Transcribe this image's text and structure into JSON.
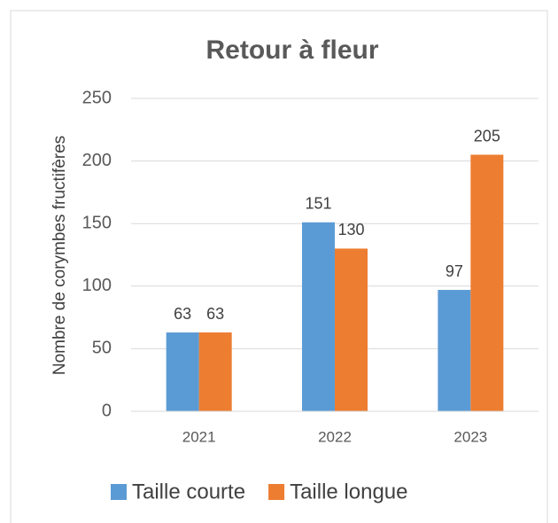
{
  "chart_data": {
    "type": "bar",
    "title": "Retour à fleur",
    "y_label": "Nombre de corymbes fructifères",
    "categories": [
      "2021",
      "2022",
      "2023"
    ],
    "series": [
      {
        "name": "Taille courte",
        "color": "#5b9bd5",
        "values": [
          63,
          151,
          97
        ]
      },
      {
        "name": "Taille longue",
        "color": "#ed7d31",
        "values": [
          63,
          130,
          205
        ]
      }
    ],
    "ylim": [
      0,
      250
    ],
    "yticks": [
      0,
      50,
      100,
      150,
      200,
      250
    ],
    "grid": true,
    "legend": "bottom"
  }
}
